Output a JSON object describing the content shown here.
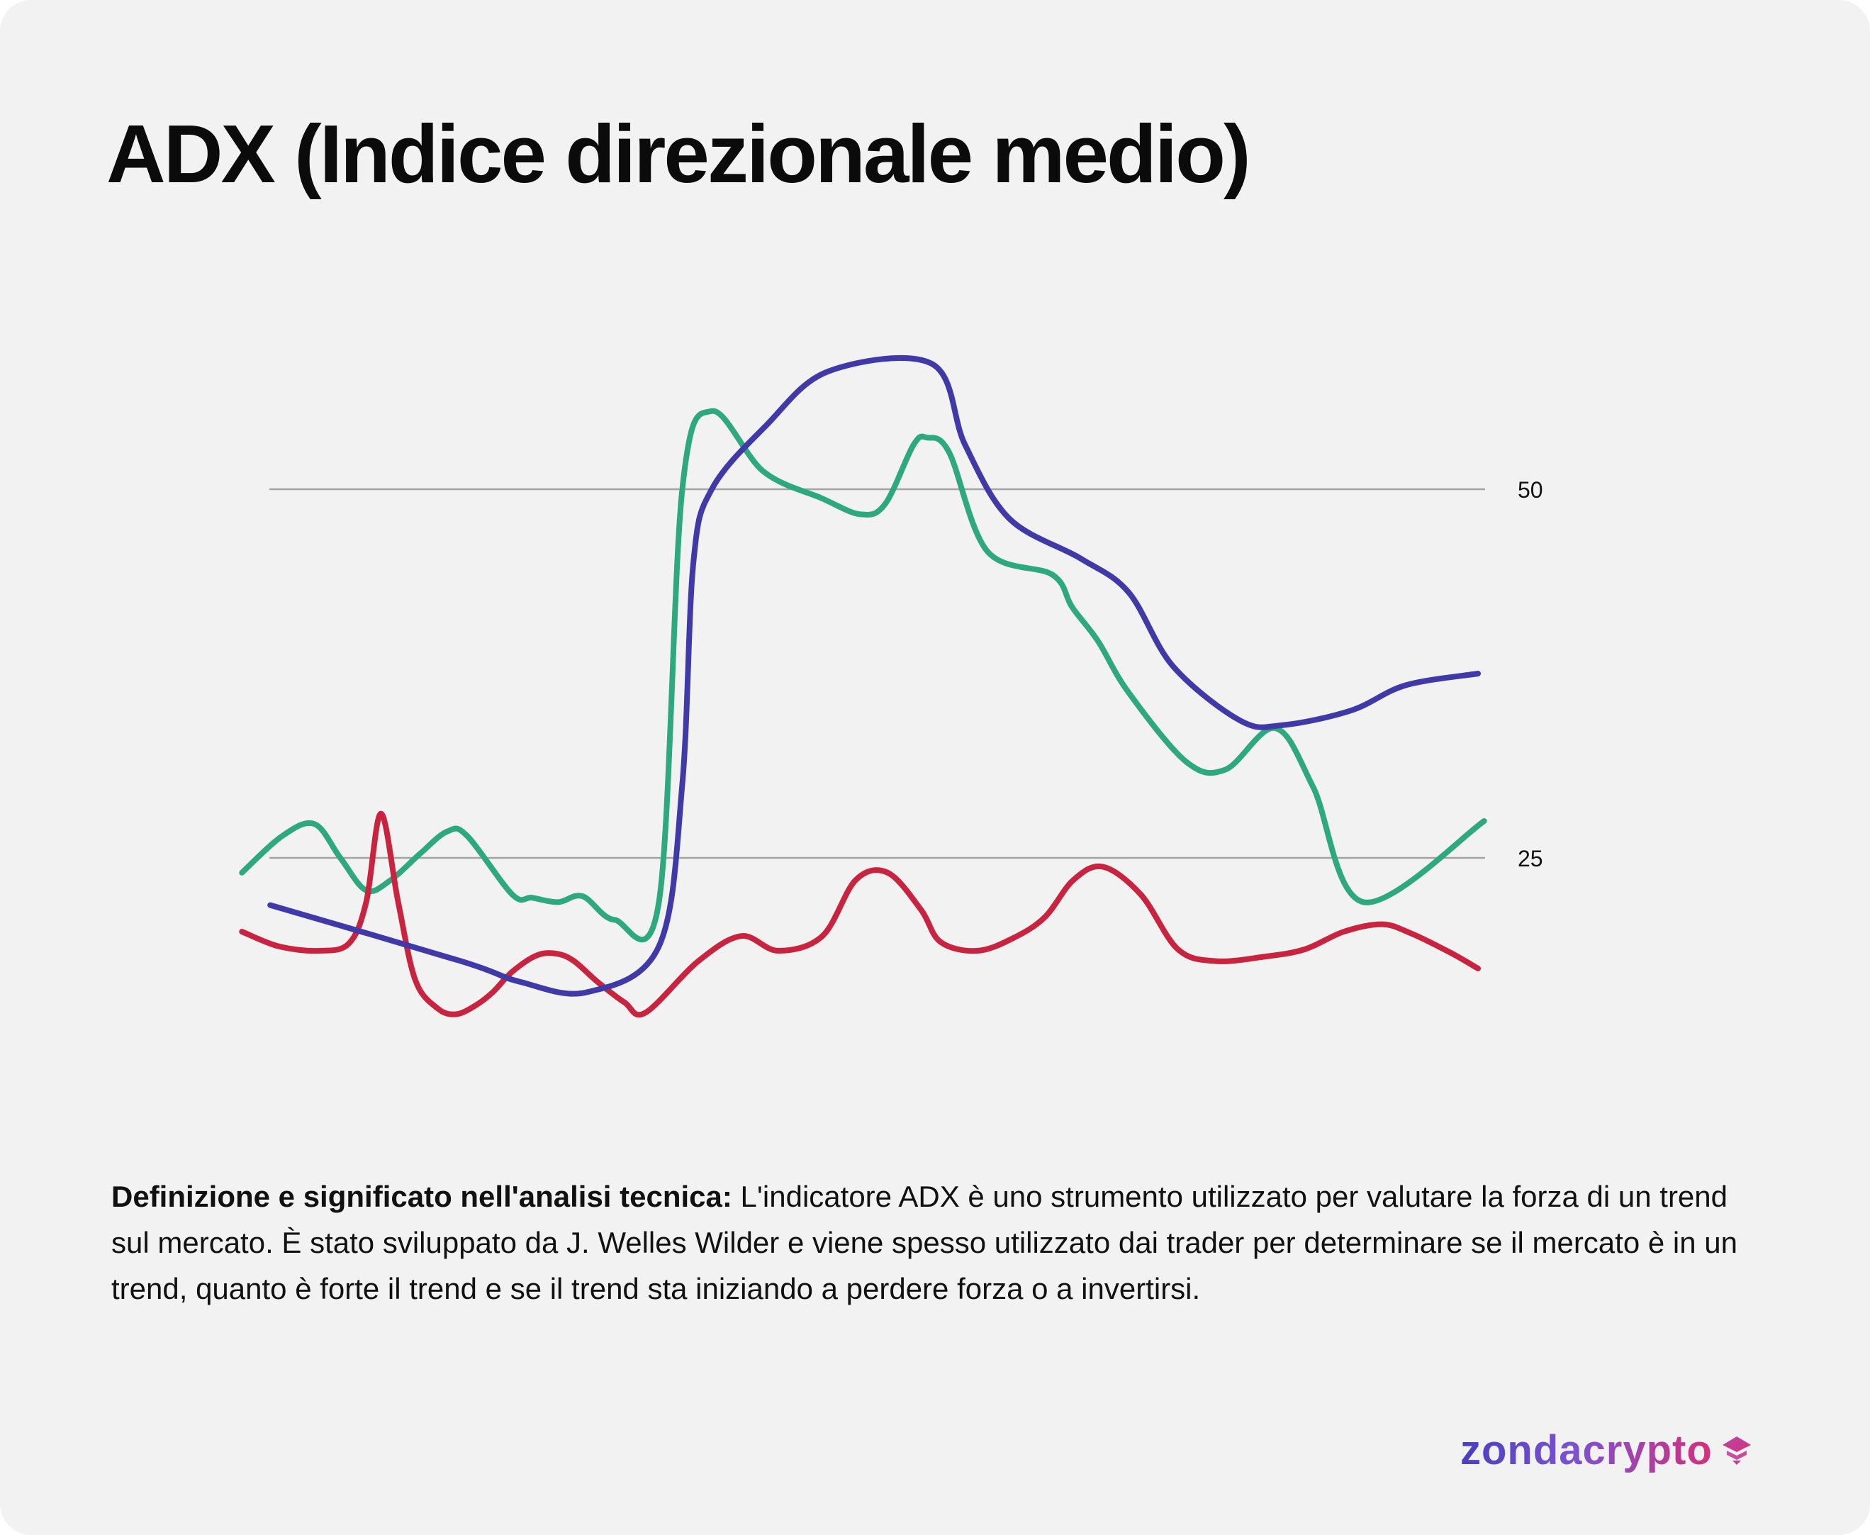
{
  "header": {
    "title": "ADX (Indice direzionale medio)"
  },
  "description": {
    "bold": "Definizione e significato nell'analisi tecnica:",
    "text": " L'indicatore ADX è uno strumento utilizzato per valutare la forza di un trend sul mercato. È stato sviluppato da J. Welles Wilder e viene spesso utilizzato dai trader per determinare se il mercato è in un trend, quanto è forte il trend e se il trend sta iniziando a perdere forza o a invertirsi."
  },
  "brand": {
    "name": "zondacrypto",
    "icon": "zonda-diamond-icon"
  },
  "chart_data": {
    "type": "line",
    "title": "",
    "xlabel": "",
    "ylabel": "",
    "xlim": [
      0,
      100
    ],
    "ylim": [
      10,
      62
    ],
    "grid": false,
    "legend": "none",
    "reference_lines": [
      {
        "value": 50,
        "label": "50"
      },
      {
        "value": 25,
        "label": "25"
      }
    ],
    "series": [
      {
        "color": "#3f3aa8",
        "x": [
          1.8,
          17.3,
          22.1,
          27.6,
          33.4,
          35.3,
          36.2,
          37.7,
          42.1,
          47.2,
          55.6,
          58.3,
          61.9,
          67.7,
          71.6,
          75.2,
          80.7,
          84.1,
          89.7,
          94.1,
          100
        ],
        "y": [
          21.8,
          18.0,
          16.6,
          15.9,
          19.0,
          30.0,
          45.0,
          50.0,
          54.3,
          58.0,
          58.5,
          53.0,
          48.0,
          45.3,
          43.0,
          38.0,
          34.3,
          34.0,
          35.0,
          36.7,
          37.5
        ]
      },
      {
        "color": "#2ea87e",
        "x": [
          -0.5,
          2.8,
          5.4,
          7.5,
          9.6,
          11.6,
          14.0,
          16.2,
          17.8,
          21.5,
          23.1,
          25.2,
          27.2,
          29.8,
          33.4,
          35.3,
          37.7,
          41.9,
          46.6,
          49.8,
          51.8,
          54.1,
          55.2,
          57.0,
          60.1,
          65.4,
          67.0,
          69.1,
          71.6,
          76.3,
          79.5,
          83.5,
          86.6,
          90.7,
          100.5
        ],
        "y": [
          24.0,
          26.5,
          27.3,
          25.0,
          22.8,
          23.5,
          25.3,
          26.8,
          26.5,
          22.5,
          22.3,
          22.0,
          22.4,
          20.8,
          22.0,
          50.0,
          55.3,
          51.2,
          49.4,
          48.3,
          49.0,
          53.0,
          53.5,
          52.5,
          45.8,
          44.2,
          42.0,
          39.7,
          36.2,
          31.5,
          31.0,
          33.8,
          29.8,
          22.0,
          27.5
        ]
      },
      {
        "color": "#c9243f",
        "x": [
          -0.5,
          2.5,
          5.8,
          8.2,
          9.6,
          10.8,
          12.2,
          13.6,
          15.4,
          16.9,
          18.5,
          19.9,
          21.5,
          23.5,
          25.1,
          26.5,
          28.4,
          30.6,
          32.3,
          36.6,
          40.1,
          43.1,
          46.7,
          49.4,
          52.0,
          54.7,
          56.3,
          59.3,
          62.3,
          64.8,
          67.1,
          69.5,
          72.6,
          75.6,
          78.7,
          82.6,
          85.9,
          89.1,
          92.2,
          94.5,
          97.7,
          100
        ],
        "y": [
          20.0,
          19.0,
          18.7,
          19.2,
          22.0,
          28.0,
          22.0,
          16.7,
          14.8,
          14.4,
          15.0,
          15.9,
          17.3,
          18.4,
          18.5,
          18.0,
          16.6,
          15.2,
          14.5,
          18.0,
          19.7,
          18.7,
          19.7,
          23.5,
          24.0,
          21.5,
          19.3,
          18.7,
          19.6,
          21.0,
          23.5,
          24.4,
          22.5,
          18.8,
          18.0,
          18.3,
          18.8,
          20.0,
          20.5,
          19.9,
          18.6,
          17.5
        ]
      }
    ]
  }
}
